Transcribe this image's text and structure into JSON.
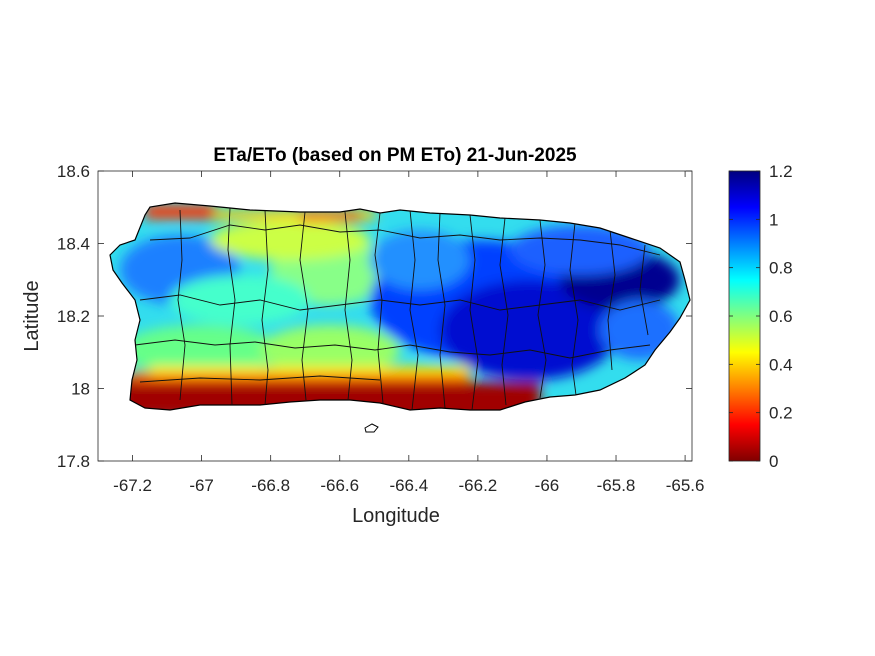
{
  "chart_data": {
    "type": "heatmap",
    "title": "ETa/ETo (based on PM ETo) 21-Jun-2025",
    "xlabel": "Longitude",
    "ylabel": "Latitude",
    "xlim": [
      -67.3,
      -65.58
    ],
    "ylim": [
      17.8,
      18.6
    ],
    "x_ticks": [
      -67.2,
      -67,
      -66.8,
      -66.6,
      -66.4,
      -66.2,
      -66,
      -65.8,
      -65.6
    ],
    "x_tick_labels": [
      "-67.2",
      "-67",
      "-66.8",
      "-66.6",
      "-66.4",
      "-66.2",
      "-66",
      "-65.8",
      "-65.6"
    ],
    "y_ticks": [
      17.8,
      18,
      18.2,
      18.4,
      18.6
    ],
    "y_tick_labels": [
      "17.8",
      "18",
      "18.2",
      "18.4",
      "18.6"
    ],
    "grid": false,
    "colorbar": {
      "colormap": "jet",
      "range": [
        0,
        1.2
      ],
      "ticks": [
        0,
        0.2,
        0.4,
        0.6,
        0.8,
        1,
        1.2
      ],
      "tick_labels": [
        "0",
        "0.2",
        "0.4",
        "0.6",
        "0.8",
        "1",
        "1.2"
      ],
      "stops": [
        "#800000",
        "#ff0000",
        "#ff8000",
        "#ffff00",
        "#80ff80",
        "#00ffff",
        "#0080ff",
        "#0000ff",
        "#000080"
      ]
    },
    "regions": [
      {
        "name": "south coast",
        "approx_value": 0.05
      },
      {
        "name": "north coast fringe",
        "approx_value": 0.3
      },
      {
        "name": "west and central interior",
        "approx_value": 0.7
      },
      {
        "name": "east interior",
        "approx_value": 1.05
      },
      {
        "name": "far east",
        "approx_value": 0.85
      }
    ]
  }
}
